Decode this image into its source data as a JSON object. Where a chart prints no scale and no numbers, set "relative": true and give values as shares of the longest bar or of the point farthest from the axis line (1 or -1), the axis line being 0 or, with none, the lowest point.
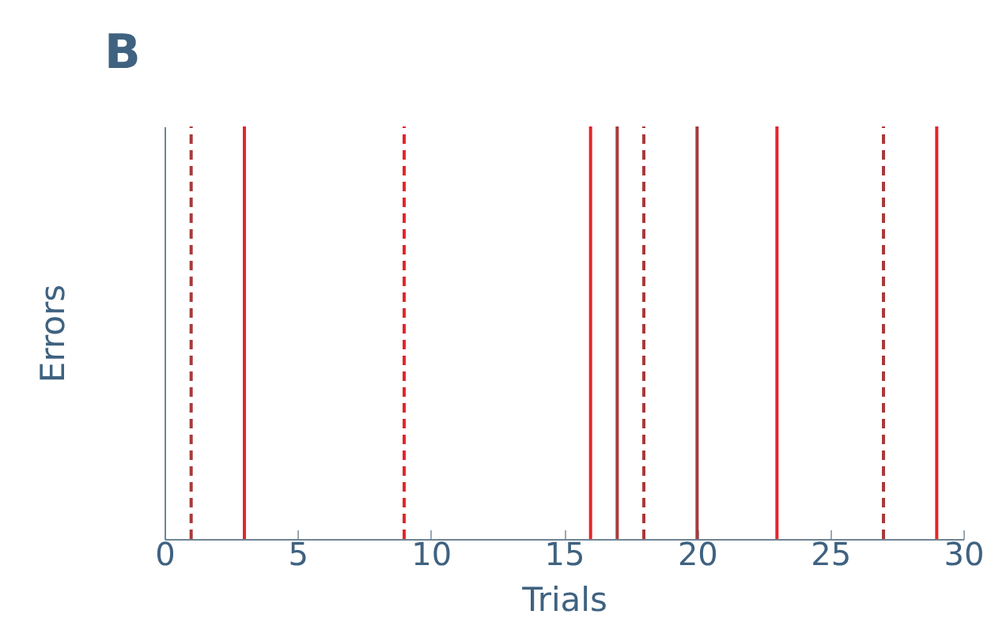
{
  "chart_data": {
    "type": "line",
    "title": "B",
    "xlabel": "Trials",
    "ylabel": "Errors",
    "xlim": [
      0,
      30
    ],
    "xticks": [
      0,
      5,
      10,
      15,
      20,
      25,
      30
    ],
    "relative": true,
    "series": [
      {
        "color": "#a83a3a",
        "line_style": "dashed",
        "x": [
          1,
          1
        ],
        "values": [
          0,
          1
        ]
      },
      {
        "color": "#e3262b",
        "line_style": "solid",
        "x": [
          3,
          3
        ],
        "values": [
          0,
          1
        ]
      },
      {
        "color": "#e3262b",
        "line_style": "dashed",
        "x": [
          9,
          9
        ],
        "values": [
          0,
          1
        ]
      },
      {
        "color": "#e3262b",
        "line_style": "solid",
        "x": [
          16,
          16
        ],
        "values": [
          0,
          1
        ]
      },
      {
        "color": "#a83a3a",
        "line_style": "solid",
        "x": [
          17,
          17
        ],
        "values": [
          0,
          1
        ]
      },
      {
        "color": "#a83a3a",
        "line_style": "dashed",
        "x": [
          18,
          18
        ],
        "values": [
          0,
          1
        ]
      },
      {
        "color": "#a83a3a",
        "line_style": "solid",
        "x": [
          20,
          20
        ],
        "values": [
          0,
          1
        ]
      },
      {
        "color": "#e3262b",
        "line_style": "solid",
        "x": [
          23,
          23
        ],
        "values": [
          0,
          1
        ]
      },
      {
        "color": "#a83a3a",
        "line_style": "dashed",
        "x": [
          27,
          27
        ],
        "values": [
          0,
          1
        ]
      },
      {
        "color": "#e3262b",
        "line_style": "solid",
        "x": [
          29,
          29
        ],
        "values": [
          0,
          1
        ]
      }
    ]
  }
}
